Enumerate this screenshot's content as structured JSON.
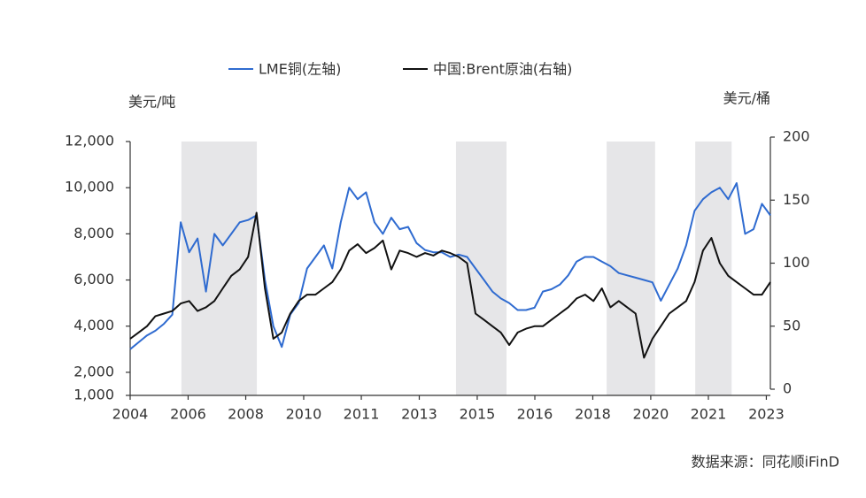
{
  "chart_data": {
    "type": "line",
    "legend_position": "top",
    "y_unit_label": "美元/吨",
    "y2_unit_label": "美元/桶",
    "source": "数据来源：同花顺iFinD",
    "x": [
      2004,
      2004.25,
      2004.5,
      2004.75,
      2005,
      2005.25,
      2005.5,
      2005.75,
      2006,
      2006.25,
      2006.5,
      2006.75,
      2007,
      2007.25,
      2007.5,
      2007.75,
      2008,
      2008.25,
      2008.5,
      2008.75,
      2009,
      2009.25,
      2009.5,
      2009.75,
      2010,
      2010.25,
      2010.5,
      2010.75,
      2011,
      2011.25,
      2011.5,
      2011.75,
      2012,
      2012.25,
      2012.5,
      2012.75,
      2013,
      2013.25,
      2013.5,
      2013.75,
      2014,
      2014.25,
      2014.5,
      2014.75,
      2015,
      2015.25,
      2015.5,
      2015.75,
      2016,
      2016.25,
      2016.5,
      2016.75,
      2017,
      2017.25,
      2017.5,
      2017.75,
      2018,
      2018.25,
      2018.5,
      2018.75,
      2019,
      2019.25,
      2019.5,
      2019.75,
      2020,
      2020.25,
      2020.5,
      2020.75,
      2021,
      2021.25,
      2021.5,
      2021.75,
      2022,
      2022.25,
      2022.5,
      2022.75,
      2023
    ],
    "series": [
      {
        "name": "LME铜(左轴)",
        "color": "#2f6bd0",
        "axis": "y",
        "values": [
          3000,
          3300,
          3600,
          3800,
          4100,
          4500,
          8500,
          7200,
          7800,
          5500,
          8000,
          7500,
          8000,
          8500,
          8600,
          8800,
          6000,
          4000,
          3100,
          4500,
          5000,
          6500,
          7000,
          7500,
          6500,
          8500,
          10000,
          9500,
          9800,
          8500,
          8000,
          8700,
          8200,
          8300,
          7600,
          7300,
          7200,
          7200,
          7000,
          7100,
          7000,
          6500,
          6000,
          5500,
          5200,
          5000,
          4700,
          4700,
          4800,
          5500,
          5600,
          5800,
          6200,
          6800,
          7000,
          7000,
          6800,
          6600,
          6300,
          6200,
          6100,
          6000,
          5900,
          5100,
          5800,
          6500,
          7500,
          9000,
          9500,
          9800,
          10000,
          9500,
          10200,
          8000,
          8200,
          9300,
          8800
        ]
      },
      {
        "name": "中国:Brent原油(右轴)",
        "color": "#111111",
        "axis": "y2",
        "values": [
          40,
          45,
          50,
          58,
          60,
          62,
          68,
          70,
          62,
          65,
          70,
          80,
          90,
          95,
          105,
          140,
          80,
          40,
          45,
          60,
          70,
          75,
          75,
          80,
          85,
          95,
          110,
          115,
          108,
          112,
          118,
          95,
          110,
          108,
          105,
          108,
          106,
          110,
          108,
          105,
          100,
          60,
          55,
          50,
          45,
          35,
          45,
          48,
          50,
          50,
          55,
          60,
          65,
          72,
          75,
          70,
          80,
          65,
          70,
          65,
          60,
          25,
          40,
          50,
          60,
          65,
          70,
          85,
          110,
          120,
          100,
          90,
          85,
          80,
          75,
          75,
          85
        ]
      }
    ],
    "shaded": [
      [
        2005.52,
        2007.76
      ],
      [
        2013.67,
        2015.17
      ],
      [
        2018.14,
        2019.58
      ],
      [
        2020.77,
        2021.85
      ]
    ],
    "shade_color": "#e6e6e8",
    "xlim": [
      2004,
      2023
    ],
    "xticks": [
      {
        "value": 2004,
        "label": "2004"
      },
      {
        "value": 2005.72,
        "label": "2006"
      },
      {
        "value": 2007.43,
        "label": "2008"
      },
      {
        "value": 2009.15,
        "label": "2010"
      },
      {
        "value": 2010.86,
        "label": "2011"
      },
      {
        "value": 2012.58,
        "label": "2013"
      },
      {
        "value": 2014.3,
        "label": "2015"
      },
      {
        "value": 2016.01,
        "label": "2016"
      },
      {
        "value": 2017.73,
        "label": "2018"
      },
      {
        "value": 2019.45,
        "label": "2020"
      },
      {
        "value": 2021.16,
        "label": "2021"
      },
      {
        "value": 2022.88,
        "label": "2023"
      }
    ],
    "ylim": [
      1000,
      12000
    ],
    "yticks": [
      {
        "value": 1000,
        "label": "1,000"
      },
      {
        "value": 2000,
        "label": "2,000"
      },
      {
        "value": 4000,
        "label": "4,000"
      },
      {
        "value": 6000,
        "label": "6,000"
      },
      {
        "value": 8000,
        "label": "8,000"
      },
      {
        "value": 10000,
        "label": "10,000"
      },
      {
        "value": 12000,
        "label": "12,000"
      }
    ],
    "y2lim": [
      0,
      200
    ],
    "y2ticks": [
      0,
      50,
      100,
      150,
      200
    ],
    "grid": false
  }
}
